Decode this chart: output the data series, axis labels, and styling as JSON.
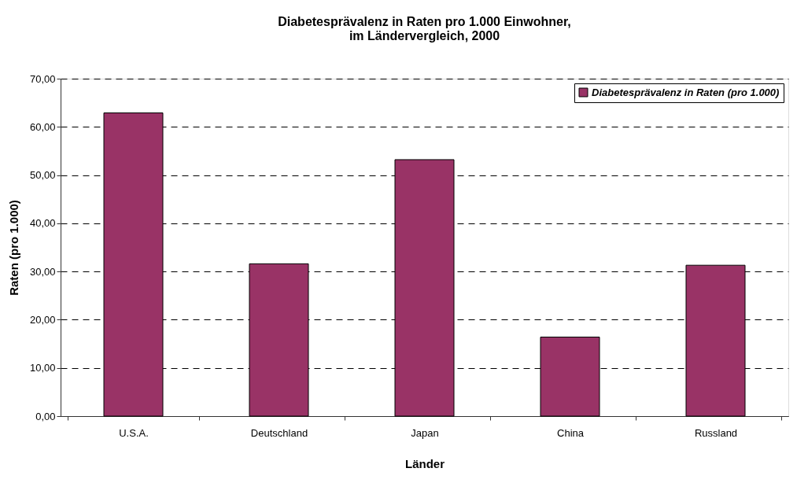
{
  "chart_data": {
    "type": "bar",
    "title": [
      "Diabetesprävalenz in Raten pro 1.000 Einwohner,",
      "im Ländervergleich, 2000"
    ],
    "xlabel": "Länder",
    "ylabel": "Raten (pro 1.000)",
    "categories": [
      "U.S.A.",
      "Deutschland",
      "Japan",
      "China",
      "Russland"
    ],
    "series": [
      {
        "name": "Diabetesprävalenz in Raten (pro 1.000)",
        "color": "#993366",
        "values": [
          62.9,
          31.6,
          53.2,
          16.4,
          31.3
        ]
      }
    ],
    "ylim": [
      0,
      70
    ],
    "yticks": [
      {
        "value": 0,
        "label": "0,00"
      },
      {
        "value": 10,
        "label": "10,00"
      },
      {
        "value": 20,
        "label": "20,00"
      },
      {
        "value": 30,
        "label": "30,00"
      },
      {
        "value": 40,
        "label": "40,00"
      },
      {
        "value": 50,
        "label": "50,00"
      },
      {
        "value": 60,
        "label": "60,00"
      },
      {
        "value": 70,
        "label": "70,00"
      }
    ],
    "grid": "y",
    "legend": "top right"
  }
}
